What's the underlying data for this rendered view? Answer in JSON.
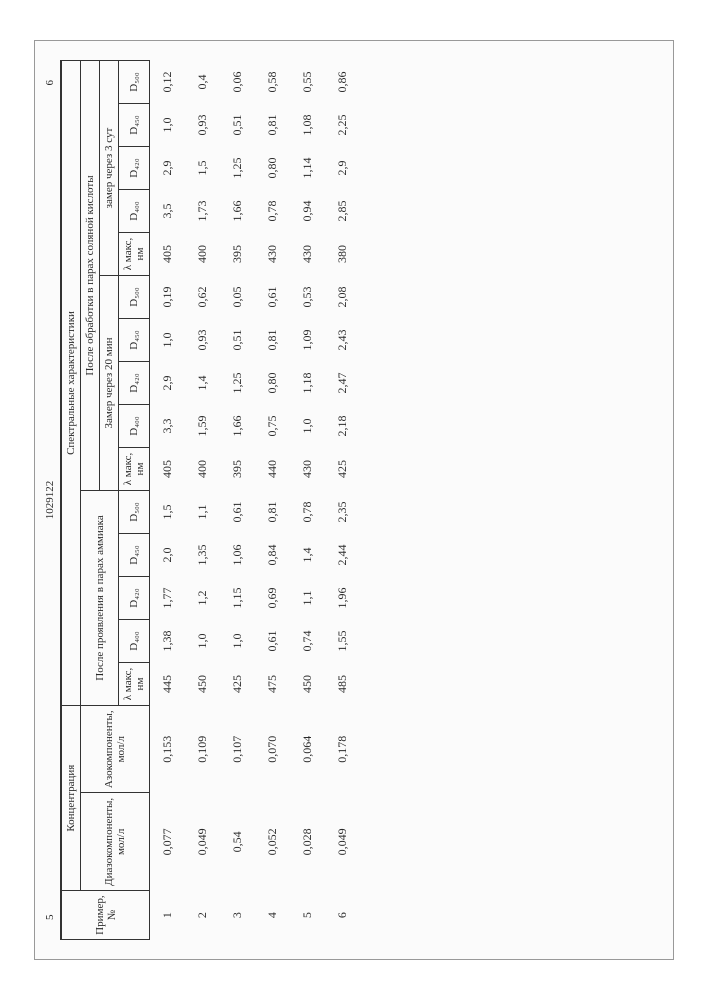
{
  "doc_number": "1029122",
  "left_marker": "5",
  "right_marker": "6",
  "headers": {
    "primer": "Пример, №",
    "konc": "Концентрация",
    "spectral": "Спектральные характеристики",
    "diazo": "Диазокомпоненты, мол/л",
    "azo": "Азокомпоненты, мол/л",
    "after_ammonia": "После проявления в парах аммиака",
    "after_hcl": "После обработки в парах соляной кислоты",
    "zam20": "Замер через 20 мин",
    "zam3": "замер через 3 сут",
    "lambda": "λ макс, нм",
    "d400": "D₄₀₀",
    "d420": "D₄₂₀",
    "d450": "D₄₅₀",
    "d500": "D₅₀₀"
  },
  "rows": [
    {
      "n": "1",
      "diazo": "0,077",
      "azo": "0,153",
      "a_l": "445",
      "a_400": "1,38",
      "a_420": "1,77",
      "a_450": "2,0",
      "a_500": "1,5",
      "b_l": "405",
      "b_400": "3,3",
      "b_420": "2,9",
      "b_450": "1,0",
      "b_500": "0,19",
      "c_l": "405",
      "c_400": "3,5",
      "c_420": "2,9",
      "c_450": "1,0",
      "c_500": "0,12"
    },
    {
      "n": "2",
      "diazo": "0,049",
      "azo": "0,109",
      "a_l": "450",
      "a_400": "1,0",
      "a_420": "1,2",
      "a_450": "1,35",
      "a_500": "1,1",
      "b_l": "400",
      "b_400": "1,59",
      "b_420": "1,4",
      "b_450": "0,93",
      "b_500": "0,62",
      "c_l": "400",
      "c_400": "1,73",
      "c_420": "1,5",
      "c_450": "0,93",
      "c_500": "0,4"
    },
    {
      "n": "3",
      "diazo": "0,54",
      "azo": "0,107",
      "a_l": "425",
      "a_400": "1,0",
      "a_420": "1,15",
      "a_450": "1,06",
      "a_500": "0,61",
      "b_l": "395",
      "b_400": "1,66",
      "b_420": "1,25",
      "b_450": "0,51",
      "b_500": "0,05",
      "c_l": "395",
      "c_400": "1,66",
      "c_420": "1,25",
      "c_450": "0,51",
      "c_500": "0,06"
    },
    {
      "n": "4",
      "diazo": "0,052",
      "azo": "0,070",
      "a_l": "475",
      "a_400": "0,61",
      "a_420": "0,69",
      "a_450": "0,84",
      "a_500": "0,81",
      "b_l": "440",
      "b_400": "0,75",
      "b_420": "0,80",
      "b_450": "0,81",
      "b_500": "0,61",
      "c_l": "430",
      "c_400": "0,78",
      "c_420": "0,80",
      "c_450": "0,81",
      "c_500": "0,58"
    },
    {
      "n": "5",
      "diazo": "0,028",
      "azo": "0,064",
      "a_l": "450",
      "a_400": "0,74",
      "a_420": "1,1",
      "a_450": "1,4",
      "a_500": "0,78",
      "b_l": "430",
      "b_400": "1,0",
      "b_420": "1,18",
      "b_450": "1,09",
      "b_500": "0,53",
      "c_l": "430",
      "c_400": "0,94",
      "c_420": "1,14",
      "c_450": "1,08",
      "c_500": "0,55"
    },
    {
      "n": "6",
      "diazo": "0,049",
      "azo": "0,178",
      "a_l": "485",
      "a_400": "1,55",
      "a_420": "1,96",
      "a_450": "2,44",
      "a_500": "2,35",
      "b_l": "425",
      "b_400": "2,18",
      "b_420": "2,47",
      "b_450": "2,43",
      "b_500": "2,08",
      "c_l": "380",
      "c_400": "2,85",
      "c_420": "2,9",
      "c_450": "2,25",
      "c_500": "0,86"
    }
  ]
}
